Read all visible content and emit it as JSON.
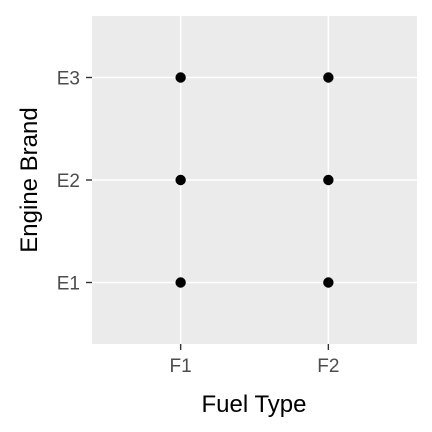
{
  "chart_data": {
    "type": "scatter",
    "xlabel": "Fuel Type",
    "ylabel": "Engine Brand",
    "x_categories": [
      "F1",
      "F2"
    ],
    "y_categories": [
      "E1",
      "E2",
      "E3"
    ],
    "points": [
      {
        "x": "F1",
        "y": "E1"
      },
      {
        "x": "F1",
        "y": "E2"
      },
      {
        "x": "F1",
        "y": "E3"
      },
      {
        "x": "F2",
        "y": "E1"
      },
      {
        "x": "F2",
        "y": "E2"
      },
      {
        "x": "F2",
        "y": "E3"
      }
    ],
    "grid": true,
    "legend": "none",
    "colors": {
      "panel_background": "#ebebeb",
      "grid_line": "#ffffff",
      "point": "#000000",
      "tick": "#333333",
      "tick_label": "#4d4d4d"
    }
  }
}
